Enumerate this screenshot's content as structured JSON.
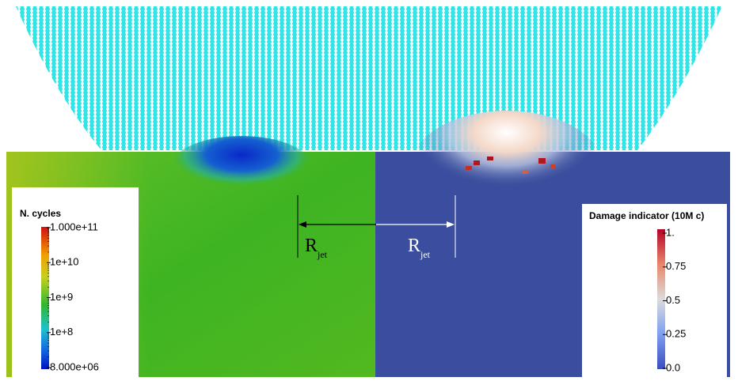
{
  "legends": [
    {
      "title": "N. cycles",
      "ticks": [
        "1.000e+11",
        "1e+10",
        "1e+9",
        "1e+8",
        "8.000e+06"
      ]
    },
    {
      "title": "Damage indicator (10M c)",
      "ticks": [
        "1.",
        "0.75",
        "0.5",
        "0.25",
        "0.0"
      ]
    }
  ],
  "annotations": [
    {
      "main": "R",
      "sub": "jet"
    },
    {
      "main": "R",
      "sub": "jet"
    }
  ]
}
